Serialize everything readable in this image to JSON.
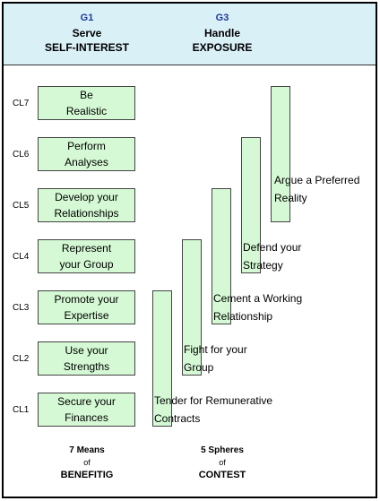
{
  "header": {
    "left": {
      "code": "G1",
      "verb": "Serve",
      "noun": "SELF-INTEREST"
    },
    "right": {
      "code": "G3",
      "verb": "Handle",
      "noun": "EXPOSURE"
    }
  },
  "levels": [
    "CL7",
    "CL6",
    "CL5",
    "CL4",
    "CL3",
    "CL2",
    "CL1"
  ],
  "means": [
    {
      "line1": "Be",
      "line2": "Realistic"
    },
    {
      "line1": "Perform",
      "line2": "Analyses"
    },
    {
      "line1": "Develop your",
      "line2": "Relationships"
    },
    {
      "line1": "Represent",
      "line2": "your Group"
    },
    {
      "line1": "Promote your",
      "line2": "Expertise"
    },
    {
      "line1": "Use your",
      "line2": "Strengths"
    },
    {
      "line1": "Secure your",
      "line2": "Finances"
    }
  ],
  "spheres": [
    {
      "line1": "Tender for Remunerative",
      "line2": "Contracts"
    },
    {
      "line1": "Fight for your",
      "line2": "Group"
    },
    {
      "line1": "Cement a Working",
      "line2": "Relationship"
    },
    {
      "line1": "Defend your",
      "line2": "Strategy"
    },
    {
      "line1": "Argue a Preferred",
      "line2": "Reality"
    }
  ],
  "footer": {
    "left": {
      "count": "7 Means",
      "of": "of",
      "title": "BENEFITIG"
    },
    "right": {
      "count": "5 Spheres",
      "of": "of",
      "title": "CONTEST"
    }
  },
  "colors": {
    "header_bg": "#d9f0f7",
    "box_fill": "#d4f9d4",
    "code_text": "#1f3b9a"
  }
}
